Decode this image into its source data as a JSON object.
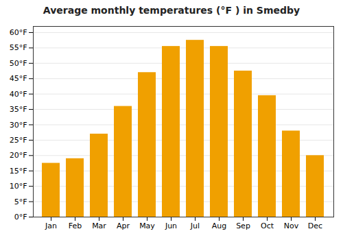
{
  "chart_data": {
    "type": "bar",
    "title": "Average monthly temperatures (°F ) in Smedby",
    "categories": [
      "Jan",
      "Feb",
      "Mar",
      "Apr",
      "May",
      "Jun",
      "Jul",
      "Aug",
      "Sep",
      "Oct",
      "Nov",
      "Dec"
    ],
    "values": [
      17.5,
      19.0,
      27.0,
      36.0,
      47.0,
      55.5,
      57.5,
      55.5,
      47.5,
      39.5,
      28.0,
      20.0
    ],
    "color": "#F0A000",
    "ylim": [
      0,
      62
    ],
    "yticks": [
      {
        "value": 0,
        "label": "0°F"
      },
      {
        "value": 5,
        "label": "5°F"
      },
      {
        "value": 10,
        "label": "10°F"
      },
      {
        "value": 15,
        "label": "15°F"
      },
      {
        "value": 20,
        "label": "20°F"
      },
      {
        "value": 25,
        "label": "25°F"
      },
      {
        "value": 30,
        "label": "30°F"
      },
      {
        "value": 35,
        "label": "35°F"
      },
      {
        "value": 40,
        "label": "40°F"
      },
      {
        "value": 45,
        "label": "45°F"
      },
      {
        "value": 50,
        "label": "50°F"
      },
      {
        "value": 55,
        "label": "55°F"
      },
      {
        "value": 60,
        "label": "60°F"
      }
    ],
    "grid": true
  }
}
